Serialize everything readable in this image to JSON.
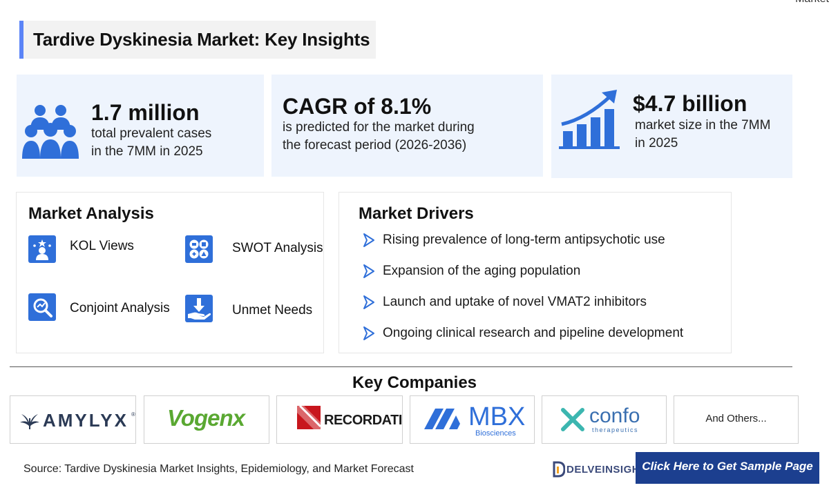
{
  "corner_text": "Market",
  "title": "Tardive Dyskinesia Market: Key Insights",
  "stats": [
    {
      "value": "1.7 million",
      "desc_line1": "total prevalent cases",
      "desc_line2": "in the 7MM in 2025",
      "icon": "people-group-icon"
    },
    {
      "value": "CAGR of 8.1%",
      "desc_line1": "is predicted for the market during",
      "desc_line2": "the forecast period (2026-2036)",
      "icon": ""
    },
    {
      "value": "$4.7 billion",
      "desc_line1": "market size in the 7MM",
      "desc_line2": "in 2025",
      "icon": "growth-chart-icon"
    }
  ],
  "market_analysis": {
    "heading": "Market Analysis",
    "items": [
      {
        "label": "KOL Views",
        "icon": "expert-icon"
      },
      {
        "label": "SWOT Analysis",
        "icon": "swot-icon"
      },
      {
        "label": "Conjoint Analysis",
        "icon": "analysis-icon"
      },
      {
        "label": "Unmet Needs",
        "icon": "hand-download-icon"
      }
    ]
  },
  "market_drivers": {
    "heading": "Market Drivers",
    "items": [
      "Rising prevalence of long-term antipsychotic use",
      "Expansion of the aging population",
      "Launch and uptake of novel VMAT2 inhibitors",
      "Ongoing clinical research and pipeline development"
    ]
  },
  "key_companies": {
    "heading": "Key Companies",
    "companies": [
      {
        "name": "AMYLYX",
        "mark": "®"
      },
      {
        "name": "Vogenx"
      },
      {
        "name": "RECORDATI"
      },
      {
        "name": "MBX",
        "sub": "Biosciences"
      },
      {
        "name": "confo",
        "sub": "therapeutics"
      },
      {
        "name": "And Others..."
      }
    ]
  },
  "footer": {
    "source": "Source: Tardive Dyskinesia Market Insights, Epidemiology, and Market Forecast",
    "brand": "DELVEINSIGHT",
    "cta": "Click Here to Get Sample Page"
  },
  "colors": {
    "accent": "#2f6fd9",
    "card_bg": "#eef4fd",
    "title_bar": "#5b84f7",
    "cta_bg": "#1c3f8f"
  }
}
